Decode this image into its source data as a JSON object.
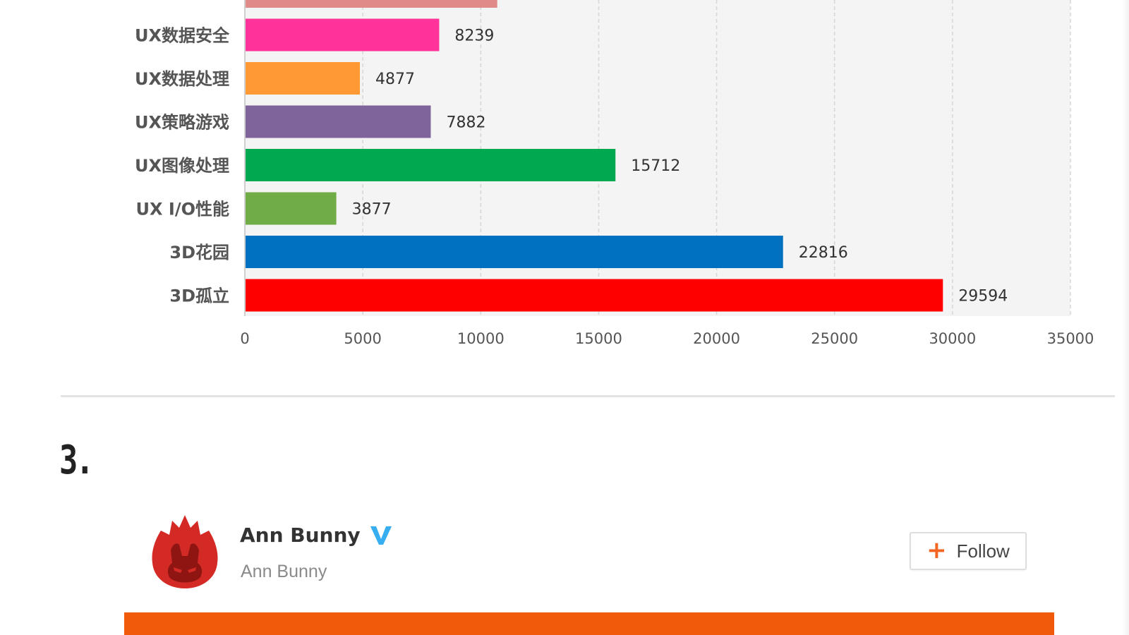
{
  "chart_data": {
    "type": "bar",
    "orientation": "horizontal",
    "categories": [
      "",
      "UX数据安全",
      "UX数据处理",
      "UX策略游戏",
      "UX图像处理",
      "UX I/O性能",
      "3D花园",
      "3D孤立"
    ],
    "values": [
      10700,
      8239,
      4877,
      7882,
      15712,
      3877,
      22816,
      29594
    ],
    "data_labels": [
      "",
      "8239",
      "4877",
      "7882",
      "15712",
      "3877",
      "22816",
      "29594"
    ],
    "colors": [
      "#e08a8a",
      "#ff3399",
      "#ff9933",
      "#7f649c",
      "#00a84f",
      "#70ad47",
      "#0070c0",
      "#ff0000"
    ],
    "xlim": [
      0,
      35000
    ],
    "ticks": [
      "0",
      "5000",
      "10000",
      "15000",
      "20000",
      "25000",
      "30000",
      "35000"
    ],
    "grid": true,
    "title": "",
    "xlabel": "",
    "ylabel": ""
  },
  "section": {
    "number": "3."
  },
  "author": {
    "name": "Ann Bunny",
    "handle": "Ann Bunny",
    "verified_icon": "verified-v-icon",
    "avatar_icon": "antutu-flame-logo",
    "avatar_color": "#d42a25"
  },
  "follow_button": {
    "icon": "plus-icon",
    "icon_glyph": "+",
    "label": "Follow",
    "accent": "#f26522"
  },
  "banner": {
    "color": "#f05a0a"
  }
}
